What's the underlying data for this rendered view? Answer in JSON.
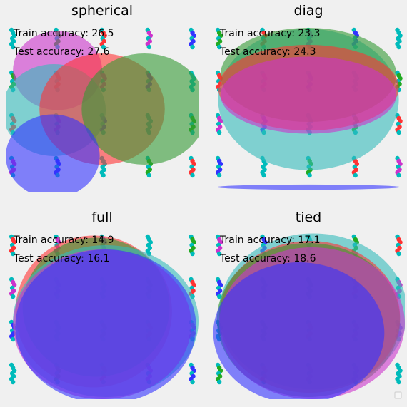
{
  "chart_data": [
    {
      "type": "scatter",
      "title": "spherical",
      "train_label": "Train accuracy: 26.5",
      "test_label": "Test accuracy: 27.6",
      "grid": false,
      "xlim": [
        -4,
        4
      ],
      "ylim": [
        -4,
        4
      ],
      "ellipses": [
        {
          "cx": -1.85,
          "cy": 1.7,
          "rx": 1.85,
          "ry": 1.85,
          "angle": 0,
          "color": "#cc33cc"
        },
        {
          "cx": -2.0,
          "cy": -0.15,
          "rx": 2.15,
          "ry": 2.15,
          "angle": 0,
          "color": "#33bbbb"
        },
        {
          "cx": 0.0,
          "cy": -0.1,
          "rx": 2.6,
          "ry": 2.6,
          "angle": 0,
          "color": "#ff3333"
        },
        {
          "cx": 1.75,
          "cy": -0.1,
          "rx": 2.6,
          "ry": 2.6,
          "angle": 0,
          "color": "#339933"
        },
        {
          "cx": -2.05,
          "cy": -2.3,
          "rx": 1.95,
          "ry": 1.95,
          "angle": 0,
          "color": "#3333ff"
        }
      ]
    },
    {
      "type": "scatter",
      "title": "diag",
      "train_label": "Train accuracy: 23.3",
      "test_label": "Test accuracy: 24.3",
      "grid": false,
      "xlim": [
        -4,
        4
      ],
      "ylim": [
        -4,
        4
      ],
      "ellipses": [
        {
          "cx": 0.0,
          "cy": 0.35,
          "rx": 3.75,
          "ry": 3.3,
          "angle": 0,
          "color": "#33bbbb"
        },
        {
          "cx": 0.0,
          "cy": 1.5,
          "rx": 3.65,
          "ry": 2.2,
          "angle": 0,
          "color": "#339933"
        },
        {
          "cx": 0.0,
          "cy": 0.9,
          "rx": 3.75,
          "ry": 2.0,
          "angle": 0,
          "color": "#ff3333"
        },
        {
          "cx": 0.0,
          "cy": 0.55,
          "rx": 3.65,
          "ry": 1.8,
          "angle": 0,
          "color": "#cc33cc"
        },
        {
          "cx": 0.0,
          "cy": -3.75,
          "rx": 3.8,
          "ry": 0.12,
          "angle": 0,
          "color": "#3333ff"
        }
      ]
    },
    {
      "type": "scatter",
      "title": "full",
      "train_label": "Train accuracy: 14.9",
      "test_label": "Test accuracy: 16.1",
      "grid": false,
      "xlim": [
        -4,
        4
      ],
      "ylim": [
        -4,
        4
      ],
      "ellipses": [
        {
          "cx": -0.35,
          "cy": 0.1,
          "rx": 3.25,
          "ry": 3.55,
          "angle": 0,
          "color": "#ff3333"
        },
        {
          "cx": -0.25,
          "cy": 0.3,
          "rx": 3.05,
          "ry": 3.25,
          "angle": 0,
          "color": "#339933"
        },
        {
          "cx": 0.15,
          "cy": -0.35,
          "rx": 3.85,
          "ry": 3.55,
          "angle": 0,
          "color": "#33bbbb"
        },
        {
          "cx": 0.0,
          "cy": -0.5,
          "rx": 3.7,
          "ry": 3.5,
          "angle": 0,
          "color": "#cc33cc"
        },
        {
          "cx": 0.15,
          "cy": -0.6,
          "rx": 3.75,
          "ry": 3.6,
          "angle": 0,
          "color": "#3333ff"
        }
      ]
    },
    {
      "type": "scatter",
      "title": "tied",
      "train_label": "Train accuracy: 17.1",
      "test_label": "Test accuracy: 18.6",
      "grid": false,
      "xlim": [
        -4,
        4
      ],
      "ylim": [
        -4,
        4
      ],
      "ellipses": [
        {
          "cx": 0.2,
          "cy": 0.1,
          "rx": 3.9,
          "ry": 3.65,
          "angle": 0,
          "color": "#33bbbb"
        },
        {
          "cx": 0.05,
          "cy": -0.15,
          "rx": 3.75,
          "ry": 3.55,
          "angle": 0,
          "color": "#ff3333"
        },
        {
          "cx": 0.0,
          "cy": -0.3,
          "rx": 3.8,
          "ry": 3.6,
          "angle": 0,
          "color": "#339933"
        },
        {
          "cx": 0.15,
          "cy": -0.45,
          "rx": 3.85,
          "ry": 3.55,
          "angle": 0,
          "color": "#cc33cc"
        },
        {
          "cx": -0.4,
          "cy": -0.9,
          "rx": 3.55,
          "ry": 3.3,
          "angle": 0,
          "color": "#3333ff"
        }
      ]
    }
  ]
}
